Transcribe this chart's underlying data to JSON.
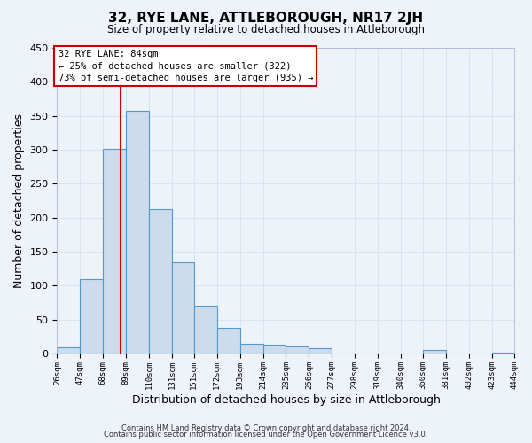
{
  "title": "32, RYE LANE, ATTLEBOROUGH, NR17 2JH",
  "subtitle": "Size of property relative to detached houses in Attleborough",
  "xlabel": "Distribution of detached houses by size in Attleborough",
  "ylabel": "Number of detached properties",
  "bin_edges": [
    26,
    47,
    68,
    89,
    110,
    131,
    151,
    172,
    193,
    214,
    235,
    256,
    277,
    298,
    319,
    340,
    360,
    381,
    402,
    423,
    444
  ],
  "bar_heights": [
    9,
    109,
    301,
    358,
    213,
    135,
    70,
    38,
    15,
    13,
    10,
    8,
    0,
    0,
    0,
    0,
    5,
    0,
    0,
    2
  ],
  "bar_color": "#ccdcec",
  "bar_edgecolor": "#5599cc",
  "reference_line_x": 84,
  "ylim": [
    0,
    450
  ],
  "annotation_text": "32 RYE LANE: 84sqm\n← 25% of detached houses are smaller (322)\n73% of semi-detached houses are larger (935) →",
  "annotation_box_color": "#ffffff",
  "annotation_box_edgecolor": "#cc0000",
  "footnote1": "Contains HM Land Registry data © Crown copyright and database right 2024.",
  "footnote2": "Contains public sector information licensed under the Open Government Licence v3.0.",
  "bg_color": "#eef3fa",
  "grid_color": "#d8e4f0",
  "tick_labels": [
    "26sqm",
    "47sqm",
    "68sqm",
    "89sqm",
    "110sqm",
    "131sqm",
    "151sqm",
    "172sqm",
    "193sqm",
    "214sqm",
    "235sqm",
    "256sqm",
    "277sqm",
    "298sqm",
    "319sqm",
    "340sqm",
    "360sqm",
    "381sqm",
    "402sqm",
    "423sqm",
    "444sqm"
  ]
}
